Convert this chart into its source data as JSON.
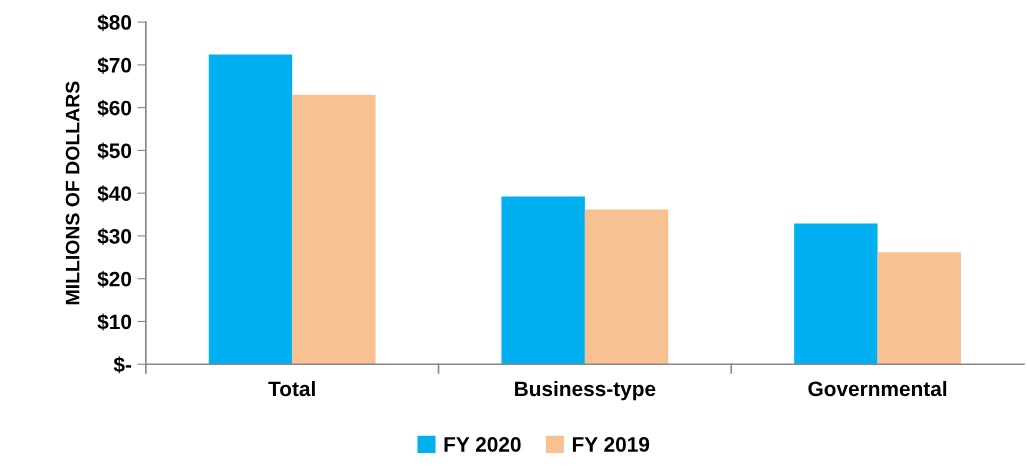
{
  "chart_data": {
    "type": "bar",
    "ylabel": "MILLIONS OF DOLLARS",
    "categories": [
      "Total",
      "Business-type",
      "Governmental"
    ],
    "series": [
      {
        "name": "FY 2020",
        "color": "#00b0f0",
        "values": [
          72.4,
          39.2,
          32.9
        ]
      },
      {
        "name": "FY 2019",
        "color": "#f8c192",
        "values": [
          63.0,
          36.2,
          26.2
        ]
      }
    ],
    "ylim": [
      0,
      80
    ],
    "yticks": [
      {
        "value": 0,
        "label": "$-"
      },
      {
        "value": 10,
        "label": "$10"
      },
      {
        "value": 20,
        "label": "$20"
      },
      {
        "value": 30,
        "label": "$30"
      },
      {
        "value": 40,
        "label": "$40"
      },
      {
        "value": 50,
        "label": "$50"
      },
      {
        "value": 60,
        "label": "$60"
      },
      {
        "value": 70,
        "label": "$70"
      },
      {
        "value": 80,
        "label": "$80"
      }
    ],
    "grid": false,
    "legend": "bottom"
  }
}
